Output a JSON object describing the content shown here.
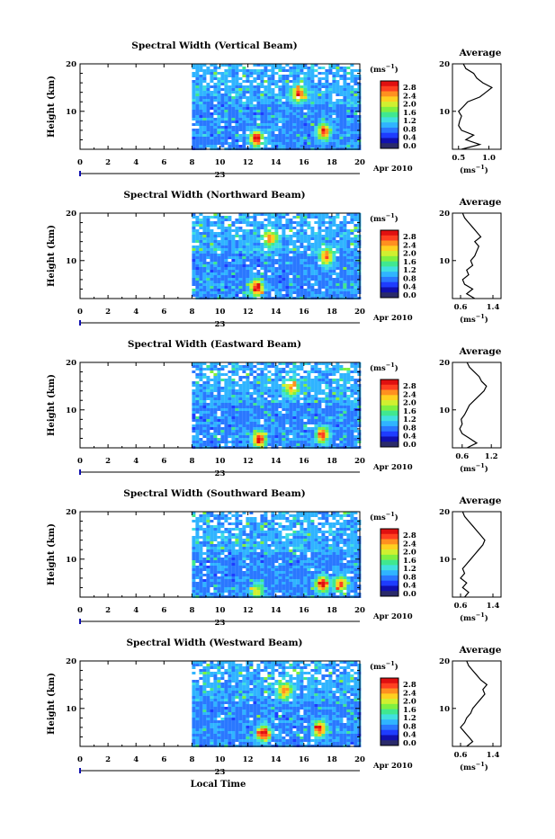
{
  "chart_data": [
    {
      "type": "heatmap",
      "title": "Spectral Width (Vertical Beam)",
      "ylabel": "Height (km)",
      "y_ticks": [
        10,
        20
      ],
      "x_ticks": [
        "0",
        "2",
        "4",
        "6",
        "8",
        "10",
        "12",
        "14",
        "16",
        "18",
        "20"
      ],
      "xlim": [
        0,
        20
      ],
      "ylim": [
        2,
        20
      ],
      "data_start_hour": 8,
      "colorbar_unit": "(ms-1)",
      "colorbar_ticks": [
        "0.0",
        "0.4",
        "0.8",
        "1.2",
        "1.6",
        "2.0",
        "2.4",
        "2.8"
      ],
      "hotspots": [
        {
          "hour": 12.5,
          "height_km": 4.5,
          "value": 2.8
        },
        {
          "hour": 15.5,
          "height_km": 14,
          "value": 2.4
        },
        {
          "hour": 17.3,
          "height_km": 6,
          "value": 2.6
        }
      ],
      "average_profile": {
        "title": "Average",
        "xlabel": "(ms-1)",
        "x_ticks": [
          "0.5",
          "1.0"
        ],
        "xlim": [
          0.4,
          1.2
        ],
        "y_ticks": [
          10,
          20
        ],
        "heights_km": [
          2,
          3,
          4,
          5,
          6,
          7,
          8,
          9,
          10,
          11,
          12,
          13,
          14,
          15,
          16,
          17,
          18,
          19,
          20
        ],
        "values": [
          0.55,
          0.85,
          0.62,
          0.75,
          0.55,
          0.5,
          0.52,
          0.55,
          0.5,
          0.58,
          0.65,
          0.85,
          0.95,
          1.05,
          0.9,
          0.8,
          0.75,
          0.62,
          0.58
        ]
      }
    },
    {
      "type": "heatmap",
      "title": "Spectral Width (Northward Beam)",
      "ylabel": "Height (km)",
      "y_ticks": [
        10,
        20
      ],
      "x_ticks": [
        "0",
        "2",
        "4",
        "6",
        "8",
        "10",
        "12",
        "14",
        "16",
        "18",
        "20"
      ],
      "xlim": [
        0,
        20
      ],
      "ylim": [
        2,
        20
      ],
      "data_start_hour": 8,
      "colorbar_unit": "(ms-1)",
      "colorbar_ticks": [
        "0.0",
        "0.4",
        "0.8",
        "1.2",
        "1.6",
        "2.0",
        "2.4",
        "2.8"
      ],
      "hotspots": [
        {
          "hour": 12.5,
          "height_km": 4.5,
          "value": 2.8
        },
        {
          "hour": 13.5,
          "height_km": 15,
          "value": 2.2
        },
        {
          "hour": 17.5,
          "height_km": 11,
          "value": 2.4
        }
      ],
      "average_profile": {
        "title": "Average",
        "xlabel": "(ms-1)",
        "x_ticks": [
          "0.6",
          "1.4"
        ],
        "xlim": [
          0.4,
          1.6
        ],
        "y_ticks": [
          10,
          20
        ],
        "heights_km": [
          2,
          3,
          4,
          5,
          6,
          7,
          8,
          9,
          10,
          11,
          12,
          13,
          14,
          15,
          16,
          17,
          18,
          19,
          20
        ],
        "values": [
          0.95,
          0.75,
          0.9,
          0.7,
          0.65,
          0.8,
          0.75,
          0.9,
          0.85,
          0.95,
          1.0,
          1.05,
          0.95,
          1.1,
          1.0,
          0.9,
          0.8,
          0.7,
          0.65
        ]
      }
    },
    {
      "type": "heatmap",
      "title": "Spectral Width (Eastward Beam)",
      "ylabel": "Height (km)",
      "y_ticks": [
        10,
        20
      ],
      "x_ticks": [
        "0",
        "2",
        "4",
        "6",
        "8",
        "10",
        "12",
        "14",
        "16",
        "18",
        "20"
      ],
      "xlim": [
        0,
        20
      ],
      "ylim": [
        2,
        20
      ],
      "data_start_hour": 8,
      "colorbar_unit": "(ms-1)",
      "colorbar_ticks": [
        "0.0",
        "0.4",
        "0.8",
        "1.2",
        "1.6",
        "2.0",
        "2.4",
        "2.8"
      ],
      "hotspots": [
        {
          "hour": 12.7,
          "height_km": 4,
          "value": 2.8
        },
        {
          "hour": 17.2,
          "height_km": 5,
          "value": 2.6
        },
        {
          "hour": 15,
          "height_km": 15,
          "value": 2.2
        }
      ],
      "average_profile": {
        "title": "Average",
        "xlabel": "(ms-1)",
        "x_ticks": [
          "0.6",
          "1.2"
        ],
        "xlim": [
          0.4,
          1.4
        ],
        "y_ticks": [
          10,
          20
        ],
        "heights_km": [
          2,
          3,
          4,
          5,
          6,
          7,
          8,
          9,
          10,
          11,
          12,
          13,
          14,
          15,
          16,
          17,
          18,
          19,
          20
        ],
        "values": [
          0.7,
          0.9,
          0.75,
          0.6,
          0.55,
          0.6,
          0.58,
          0.65,
          0.7,
          0.75,
          0.85,
          0.95,
          1.05,
          1.1,
          1.0,
          0.95,
          0.85,
          0.75,
          0.7
        ]
      }
    },
    {
      "type": "heatmap",
      "title": "Spectral Width (Southward Beam)",
      "ylabel": "Height (km)",
      "y_ticks": [
        10,
        20
      ],
      "x_ticks": [
        "0",
        "2",
        "4",
        "6",
        "8",
        "10",
        "12",
        "14",
        "16",
        "18",
        "20"
      ],
      "xlim": [
        0,
        20
      ],
      "ylim": [
        2,
        20
      ],
      "data_start_hour": 8,
      "colorbar_unit": "(ms-1)",
      "colorbar_ticks": [
        "0.0",
        "0.4",
        "0.8",
        "1.2",
        "1.6",
        "2.0",
        "2.4",
        "2.8"
      ],
      "hotspots": [
        {
          "hour": 17.2,
          "height_km": 5,
          "value": 2.8
        },
        {
          "hour": 18.5,
          "height_km": 5,
          "value": 2.4
        },
        {
          "hour": 12.5,
          "height_km": 3.5,
          "value": 2.0
        }
      ],
      "average_profile": {
        "title": "Average",
        "xlabel": "(ms-1)",
        "x_ticks": [
          "0.6",
          "1.4"
        ],
        "xlim": [
          0.4,
          1.6
        ],
        "y_ticks": [
          10,
          20
        ],
        "heights_km": [
          2,
          3,
          4,
          5,
          6,
          7,
          8,
          9,
          10,
          11,
          12,
          13,
          14,
          15,
          16,
          17,
          18,
          19,
          20
        ],
        "values": [
          0.7,
          0.8,
          0.65,
          0.75,
          0.6,
          0.7,
          0.65,
          0.75,
          0.85,
          0.95,
          1.05,
          1.15,
          1.2,
          1.1,
          1.0,
          0.9,
          0.8,
          0.7,
          0.65
        ]
      }
    },
    {
      "type": "heatmap",
      "title": "Spectral Width (Westward Beam)",
      "ylabel": "Height (km)",
      "xlabel": "Local Time",
      "y_ticks": [
        10,
        20
      ],
      "x_ticks": [
        "0",
        "2",
        "4",
        "6",
        "8",
        "10",
        "12",
        "14",
        "16",
        "18",
        "20"
      ],
      "xlim": [
        0,
        20
      ],
      "ylim": [
        2,
        20
      ],
      "data_start_hour": 8,
      "colorbar_unit": "(ms-1)",
      "colorbar_ticks": [
        "0.0",
        "0.4",
        "0.8",
        "1.2",
        "1.6",
        "2.0",
        "2.4",
        "2.8"
      ],
      "hotspots": [
        {
          "hour": 13,
          "height_km": 5,
          "value": 2.8
        },
        {
          "hour": 17,
          "height_km": 6,
          "value": 2.6
        },
        {
          "hour": 14.5,
          "height_km": 14,
          "value": 2.2
        }
      ],
      "average_profile": {
        "title": "Average",
        "xlabel": "(ms-1)",
        "x_ticks": [
          "0.6",
          "1.4"
        ],
        "xlim": [
          0.4,
          1.6
        ],
        "y_ticks": [
          10,
          20
        ],
        "heights_km": [
          2,
          3,
          4,
          5,
          6,
          7,
          8,
          9,
          10,
          11,
          12,
          13,
          14,
          15,
          16,
          17,
          18,
          19,
          20
        ],
        "values": [
          0.75,
          0.9,
          0.8,
          0.7,
          0.6,
          0.7,
          0.75,
          0.85,
          0.9,
          1.0,
          1.1,
          1.2,
          1.15,
          1.25,
          1.1,
          1.0,
          0.9,
          0.8,
          0.75
        ]
      }
    }
  ],
  "date_label": "23",
  "date_suffix": "Apr 2010",
  "colors": [
    "#2a2a6a",
    "#1010b0",
    "#1e3cff",
    "#2a78ff",
    "#30b4ff",
    "#40e0e0",
    "#40e890",
    "#80f040",
    "#d0f030",
    "#ffd020",
    "#ff9020",
    "#ff4020",
    "#e01010"
  ]
}
